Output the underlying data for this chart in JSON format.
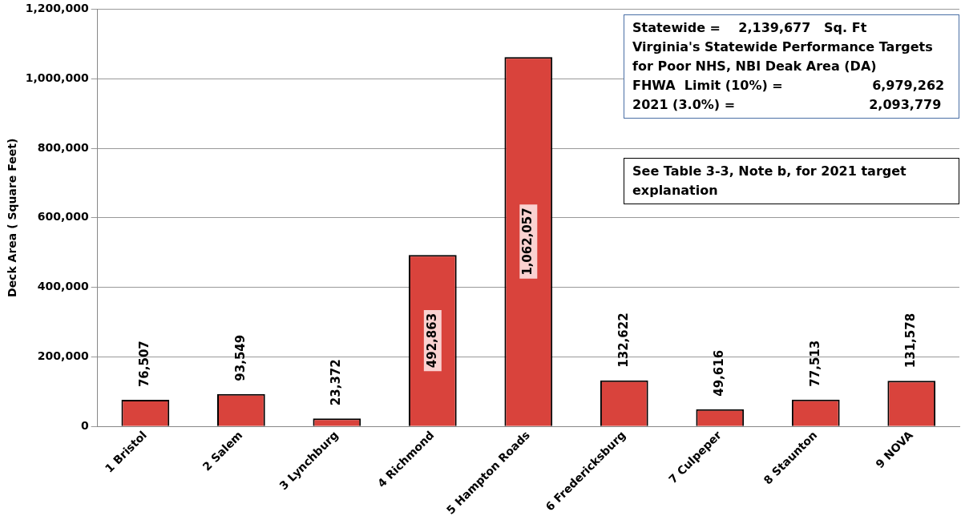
{
  "chart_data": {
    "type": "bar",
    "ylabel": "Deck Area ( Square Feet)",
    "categories": [
      "1 Bristol",
      "2 Salem",
      "3 Lynchburg",
      "4 Richmond",
      "5 Hampton Roads",
      "6 Fredericksburg",
      "7 Culpeper",
      "8 Staunton",
      "9 NOVA"
    ],
    "values": [
      76507,
      93549,
      23372,
      492863,
      1062057,
      132622,
      49616,
      77513,
      131578
    ],
    "value_labels": [
      "76,507",
      "93,549",
      "23,372",
      "492,863",
      "1,062,057",
      "132,622",
      "49,616",
      "77,513",
      "131,578"
    ],
    "color": "#d9433c",
    "grid": "y",
    "legend": false,
    "ylim": [
      0,
      1200000
    ],
    "yticks": [
      {
        "value": 0,
        "label": "0"
      },
      {
        "value": 200000,
        "label": "200,000"
      },
      {
        "value": 400000,
        "label": "400,000"
      },
      {
        "value": 600000,
        "label": "600,000"
      },
      {
        "value": 800000,
        "label": "800,000"
      },
      {
        "value": 1000000,
        "label": "1,000,000"
      },
      {
        "value": 1200000,
        "label": "1,200,000"
      }
    ],
    "annotations": [
      "Statewide =    2,139,677   Sq. Ft",
      "Virginia's Statewide Performance Targets for Poor NHS, NBI Deak Area (DA)",
      "FHWA  Limit (10%) =                    6,979,262",
      "2021 (3.0%) =                              2,093,779",
      "See Table 3-3, Note b, for 2021 target explanation"
    ]
  }
}
